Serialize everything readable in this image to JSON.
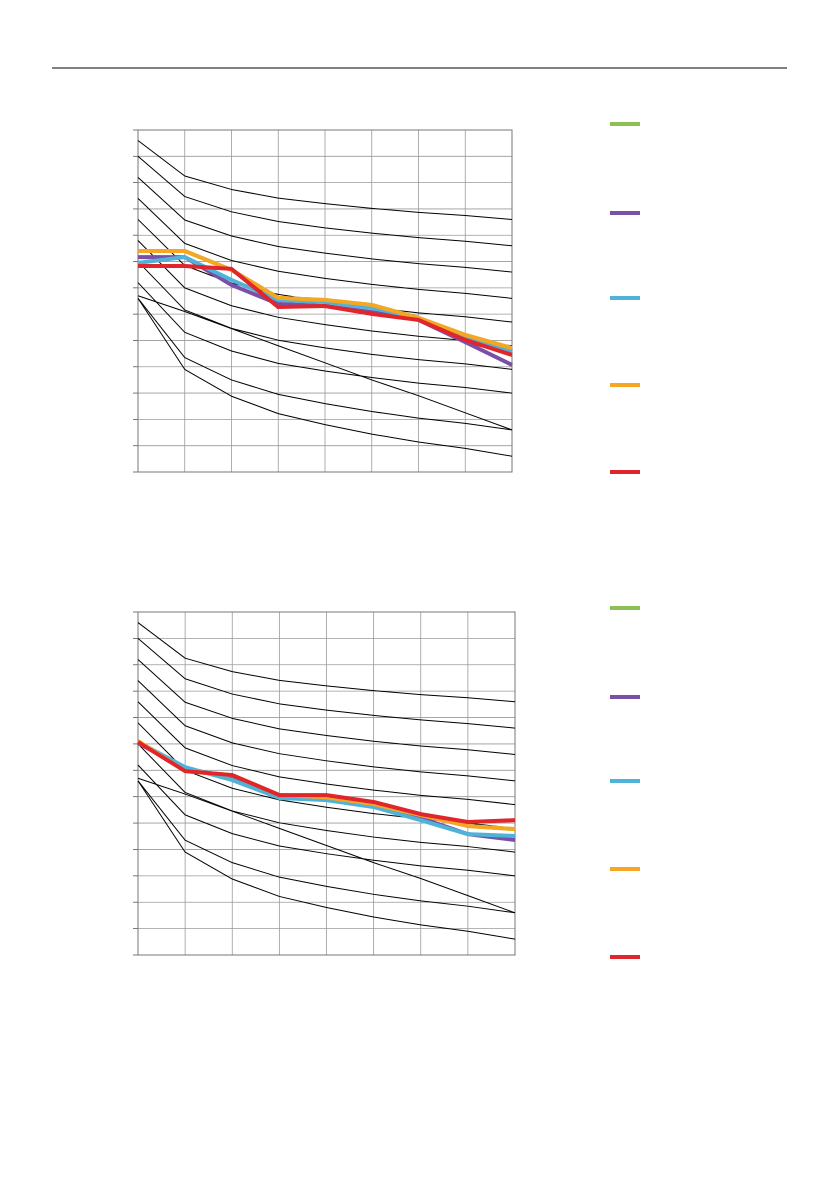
{
  "chart_data": [
    {
      "type": "line",
      "x": [
        0,
        1,
        2,
        3,
        4,
        5,
        6,
        7,
        8
      ],
      "xlim": [
        0,
        8
      ],
      "xticks": [
        0,
        1,
        2,
        3,
        4,
        5,
        6,
        7,
        8
      ],
      "ylim": [
        0,
        13
      ],
      "yticks": [
        0,
        1,
        2,
        3,
        4,
        5,
        6,
        7,
        8,
        9,
        10,
        11,
        12,
        13
      ],
      "grid": true,
      "reference_curves": {
        "color": "#000000",
        "values": [
          [
            12.6,
            11.25,
            10.74,
            10.41,
            10.2,
            10.02,
            9.87,
            9.75,
            9.6
          ],
          [
            12.0,
            10.47,
            9.89,
            9.52,
            9.28,
            9.08,
            8.91,
            8.77,
            8.6
          ],
          [
            11.2,
            9.58,
            8.97,
            8.57,
            8.32,
            8.1,
            7.92,
            7.78,
            7.6
          ],
          [
            10.4,
            8.69,
            8.04,
            7.63,
            7.36,
            7.13,
            6.94,
            6.79,
            6.6
          ],
          [
            9.6,
            7.85,
            7.18,
            6.75,
            6.48,
            6.25,
            6.05,
            5.9,
            5.7
          ],
          [
            8.8,
            7.0,
            6.32,
            5.88,
            5.6,
            5.36,
            5.16,
            5.0,
            4.8
          ],
          [
            8.0,
            6.16,
            5.46,
            5.01,
            4.72,
            4.47,
            4.27,
            4.11,
            3.9
          ],
          [
            7.2,
            5.31,
            4.6,
            4.13,
            3.84,
            3.59,
            3.38,
            3.21,
            3.0
          ],
          [
            6.6,
            4.35,
            3.5,
            2.95,
            2.6,
            2.3,
            2.05,
            1.85,
            1.6
          ],
          [
            6.6,
            3.9,
            2.88,
            2.22,
            1.8,
            1.44,
            1.14,
            0.9,
            0.6
          ],
          [
            6.7,
            6.1,
            5.45,
            4.8,
            4.15,
            3.5,
            2.9,
            2.25,
            1.6
          ]
        ]
      },
      "series": [
        {
          "color": "#8cc152",
          "values": [
            8.4,
            8.4,
            7.68,
            6.62,
            6.54,
            6.35,
            5.86,
            5.21,
            4.71
          ]
        },
        {
          "color": "#7a4fa8",
          "values": [
            8.17,
            8.17,
            7.11,
            6.39,
            6.31,
            6.08,
            5.78,
            4.94,
            4.07
          ]
        },
        {
          "color": "#4fb3d9",
          "values": [
            7.95,
            8.17,
            7.3,
            6.54,
            6.46,
            6.24,
            5.86,
            5.1,
            4.56
          ]
        },
        {
          "color": "#f5a623",
          "values": [
            8.4,
            8.4,
            7.68,
            6.62,
            6.54,
            6.35,
            5.86,
            5.21,
            4.71
          ]
        },
        {
          "color": "#e0262b",
          "values": [
            7.83,
            7.83,
            7.72,
            6.27,
            6.31,
            6.01,
            5.78,
            5.02,
            4.45
          ]
        }
      ]
    },
    {
      "type": "line",
      "x": [
        0,
        1,
        2,
        3,
        4,
        5,
        6,
        7,
        8
      ],
      "xlim": [
        0,
        8
      ],
      "xticks": [
        0,
        1,
        2,
        3,
        4,
        5,
        6,
        7,
        8
      ],
      "ylim": [
        0,
        13
      ],
      "yticks": [
        0,
        1,
        2,
        3,
        4,
        5,
        6,
        7,
        8,
        9,
        10,
        11,
        12,
        13
      ],
      "grid": true,
      "reference_curves": {
        "color": "#000000",
        "values": [
          [
            12.6,
            11.25,
            10.74,
            10.41,
            10.2,
            10.02,
            9.87,
            9.75,
            9.6
          ],
          [
            12.0,
            10.47,
            9.89,
            9.52,
            9.28,
            9.08,
            8.91,
            8.77,
            8.6
          ],
          [
            11.2,
            9.58,
            8.97,
            8.57,
            8.32,
            8.1,
            7.92,
            7.78,
            7.6
          ],
          [
            10.4,
            8.69,
            8.04,
            7.63,
            7.36,
            7.13,
            6.94,
            6.79,
            6.6
          ],
          [
            9.6,
            7.85,
            7.18,
            6.75,
            6.48,
            6.25,
            6.05,
            5.9,
            5.7
          ],
          [
            8.8,
            7.0,
            6.32,
            5.88,
            5.6,
            5.36,
            5.16,
            5.0,
            4.8
          ],
          [
            8.0,
            6.16,
            5.46,
            5.01,
            4.72,
            4.47,
            4.27,
            4.11,
            3.9
          ],
          [
            7.2,
            5.31,
            4.6,
            4.13,
            3.84,
            3.59,
            3.38,
            3.21,
            3.0
          ],
          [
            6.6,
            4.35,
            3.5,
            2.95,
            2.6,
            2.3,
            2.05,
            1.85,
            1.6
          ],
          [
            6.6,
            3.9,
            2.88,
            2.22,
            1.8,
            1.44,
            1.14,
            0.9,
            0.6
          ],
          [
            6.7,
            6.1,
            5.45,
            4.8,
            4.15,
            3.5,
            2.9,
            2.25,
            1.6
          ]
        ]
      },
      "series": [
        {
          "color": "#8cc152",
          "values": [
            8.11,
            6.97,
            6.82,
            6.06,
            5.98,
            5.72,
            5.3,
            4.89,
            4.77
          ]
        },
        {
          "color": "#7a4fa8",
          "values": [
            8.03,
            7.08,
            6.7,
            5.98,
            5.91,
            5.64,
            5.19,
            4.58,
            4.36
          ]
        },
        {
          "color": "#4fb3d9",
          "values": [
            8.07,
            7.12,
            6.63,
            5.95,
            5.87,
            5.61,
            5.11,
            4.58,
            4.51
          ]
        },
        {
          "color": "#f5a623",
          "values": [
            8.11,
            6.97,
            6.82,
            6.06,
            5.98,
            5.72,
            5.3,
            4.89,
            4.77
          ]
        },
        {
          "color": "#e0262b",
          "values": [
            8.07,
            6.97,
            6.82,
            6.06,
            6.06,
            5.8,
            5.34,
            5.04,
            5.11
          ]
        }
      ]
    }
  ]
}
